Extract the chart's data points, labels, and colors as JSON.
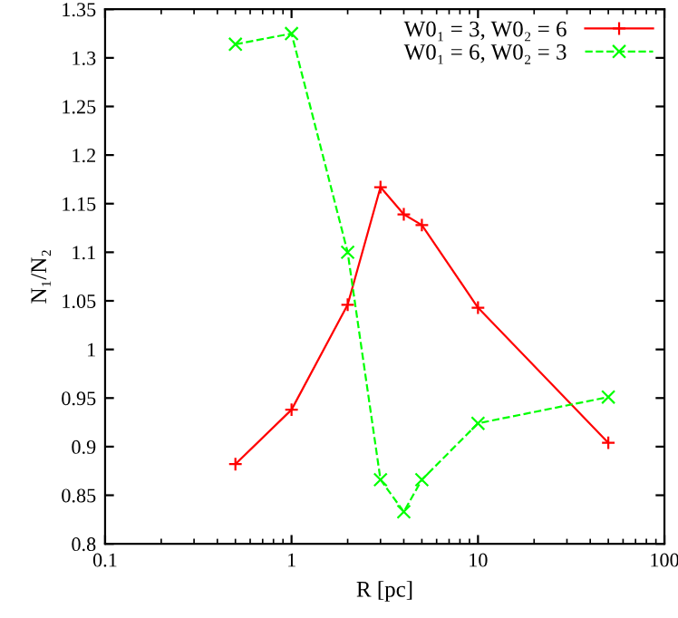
{
  "chart_data": {
    "type": "line",
    "xlabel": "R [pc]",
    "ylabel": "N₁/N₂",
    "log": "x",
    "x": [
      0.5,
      1,
      2,
      3,
      4,
      5,
      10,
      50
    ],
    "series": [
      {
        "name": "W0₁ = 3, W0₂ = 6",
        "color": "#ff0000",
        "marker": "plus",
        "line_style": "solid",
        "values": [
          0.882,
          0.938,
          1.046,
          1.167,
          1.139,
          1.128,
          1.043,
          0.904
        ]
      },
      {
        "name": "W0₁ = 6, W0₂ = 3",
        "color": "#00ff00",
        "marker": "cross",
        "line_style": "dashed",
        "values": [
          1.314,
          1.325,
          1.1,
          0.866,
          0.833,
          0.866,
          0.924,
          0.951
        ]
      }
    ],
    "xlim": [
      0.1,
      100
    ],
    "xticks": [
      0.1,
      1,
      10,
      100
    ],
    "ylim": [
      0.8,
      1.35
    ],
    "yticks": [
      0.8,
      0.85,
      0.9,
      0.95,
      1,
      1.05,
      1.1,
      1.15,
      1.2,
      1.25,
      1.3,
      1.35
    ],
    "grid": false,
    "legend": "top right"
  }
}
